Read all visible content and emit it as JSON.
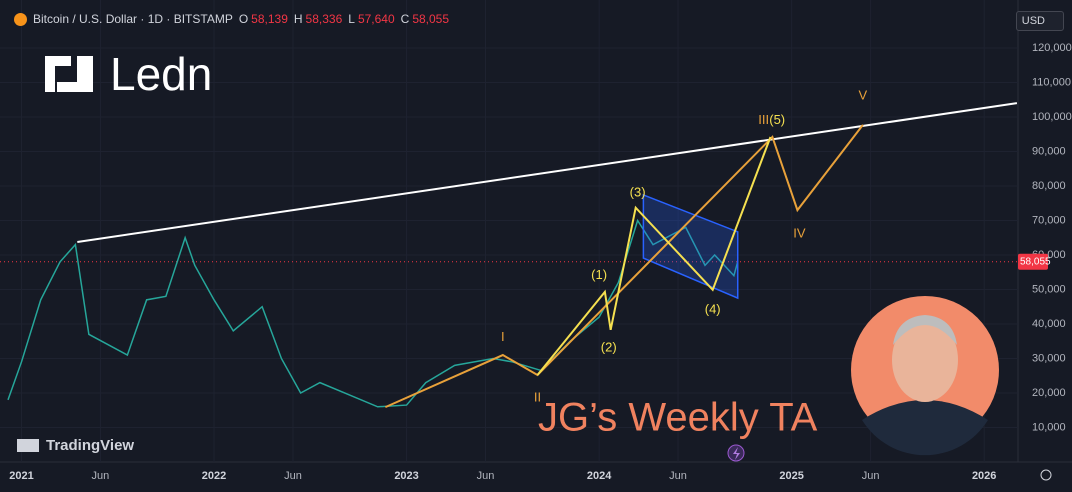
{
  "chart_data": {
    "type": "line",
    "header": {
      "title": "Bitcoin / U.S. Dollar · 1D · BITSTAMP",
      "ohlc": [
        {
          "key": "O",
          "value": 58139,
          "label": "58,139"
        },
        {
          "key": "H",
          "value": 58336,
          "label": "58,336"
        },
        {
          "key": "L",
          "value": 57640,
          "label": "57,640"
        },
        {
          "key": "C",
          "value": 58055,
          "label": "58,055"
        }
      ]
    },
    "currency": "USD",
    "brand": "Ledn",
    "watermark": "TradingView",
    "caption": "JG’s Weekly TA",
    "xlim": [
      2020.93,
      2026.16
    ],
    "ylim": [
      0,
      131000
    ],
    "xticks": [
      2021,
      {
        "value": 2021.41,
        "label": "Jun"
      },
      2022,
      {
        "value": 2022.41,
        "label": "Jun"
      },
      2023,
      {
        "value": 2023.41,
        "label": "Jun"
      },
      2024,
      {
        "value": 2024.41,
        "label": "Jun"
      },
      2025,
      {
        "value": 2025.41,
        "label": "Jun"
      },
      2026
    ],
    "yticks": [
      {
        "value": 10000,
        "label": "10,000"
      },
      {
        "value": 20000,
        "label": "20,000"
      },
      {
        "value": 30000,
        "label": "30,000"
      },
      {
        "value": 40000,
        "label": "40,000"
      },
      {
        "value": 50000,
        "label": "50,000"
      },
      {
        "value": 60000,
        "label": "60,000"
      },
      {
        "value": 70000,
        "label": "70,000"
      },
      {
        "value": 80000,
        "label": "80,000"
      },
      {
        "value": 90000,
        "label": "90,000"
      },
      {
        "value": 100000,
        "label": "100,000"
      },
      {
        "value": 110000,
        "label": "110,000"
      },
      {
        "value": 120000,
        "label": "120,000"
      }
    ],
    "price_line": {
      "value": 58055,
      "label": "58,055",
      "color": "#f23645"
    },
    "series": [
      {
        "color": "#26a69a",
        "x": [
          2020.93,
          2021.0,
          2021.1,
          2021.2,
          2021.28,
          2021.35,
          2021.45,
          2021.55,
          2021.65,
          2021.75,
          2021.85,
          2021.9,
          2022.0,
          2022.1,
          2022.25,
          2022.35,
          2022.45,
          2022.55,
          2022.7,
          2022.85,
          2023.0,
          2023.1,
          2023.25,
          2023.45,
          2023.55,
          2023.7,
          2023.85,
          2024.0,
          2024.1,
          2024.2,
          2024.28,
          2024.45,
          2024.55,
          2024.6,
          2024.7,
          2024.72
        ],
        "values": [
          18000,
          29000,
          47000,
          58000,
          63000,
          37000,
          34000,
          31000,
          47000,
          48000,
          65000,
          57000,
          47000,
          38000,
          45000,
          30000,
          20000,
          23000,
          19500,
          16000,
          16500,
          23000,
          28000,
          30000,
          29000,
          26500,
          35000,
          42000,
          52000,
          70000,
          63000,
          68000,
          57000,
          60000,
          54000,
          58055
        ]
      }
    ],
    "trendline": {
      "color": "#ffffff",
      "x": [
        2021.29,
        2026.17
      ],
      "values": [
        63760,
        104000
      ]
    },
    "channel": {
      "color": "#2962ff",
      "x": [
        2024.23,
        2024.72,
        2024.72,
        2024.23
      ],
      "values": [
        77400,
        66700,
        47500,
        59100
      ]
    },
    "waves": [
      {
        "color": "#e8a13a",
        "x": [
          2022.89,
          2023.5,
          2023.68,
          2024.9,
          2025.03,
          2025.37
        ],
        "values": [
          15900,
          31000,
          25200,
          94200,
          73000,
          97700
        ]
      },
      {
        "color": "#f5e050",
        "x": [
          2023.68,
          2024.03,
          2024.06,
          2024.19,
          2024.59,
          2024.89
        ],
        "values": [
          25200,
          49300,
          38300,
          73700,
          49900,
          94200
        ]
      }
    ],
    "wave_labels": [
      {
        "text": "I",
        "color": "#e8a13a",
        "x": 2023.5,
        "y": 36000
      },
      {
        "text": "II",
        "color": "#e8a13a",
        "x": 2023.68,
        "y": 18500
      },
      {
        "text": "III",
        "color": "#e8a13a",
        "x": 2024.855,
        "y": 99000
      },
      {
        "text": "IV",
        "color": "#e8a13a",
        "x": 2025.04,
        "y": 66000
      },
      {
        "text": "V",
        "color": "#e8a13a",
        "x": 2025.37,
        "y": 106000
      },
      {
        "text": "(1)",
        "color": "#f5e050",
        "x": 2024.0,
        "y": 54000
      },
      {
        "text": "(2)",
        "color": "#f5e050",
        "x": 2024.05,
        "y": 33000
      },
      {
        "text": "(3)",
        "color": "#f5e050",
        "x": 2024.2,
        "y": 78000
      },
      {
        "text": "(4)",
        "color": "#f5e050",
        "x": 2024.59,
        "y": 44000
      },
      {
        "text": "(5)",
        "color": "#f5e050",
        "x": 2024.925,
        "y": 99000
      }
    ]
  }
}
